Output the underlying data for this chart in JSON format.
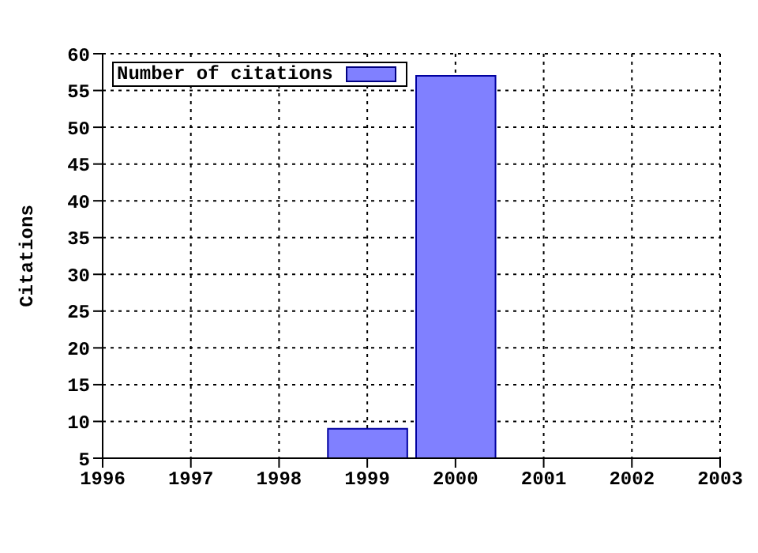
{
  "chart_data": {
    "type": "bar",
    "ylabel": "Citations",
    "x": [
      1999,
      2000
    ],
    "series": [
      {
        "name": "Number of citations",
        "color": "#8080ff",
        "values": [
          9,
          57
        ]
      }
    ],
    "xlim": [
      1996,
      2003
    ],
    "xticks": [
      1996,
      1997,
      1998,
      1999,
      2000,
      2001,
      2002,
      2003
    ],
    "ylim": [
      5,
      60
    ],
    "yticks": [
      5,
      10,
      15,
      20,
      25,
      30,
      35,
      40,
      45,
      50,
      55,
      60
    ],
    "grid": true,
    "legend": "top left"
  }
}
